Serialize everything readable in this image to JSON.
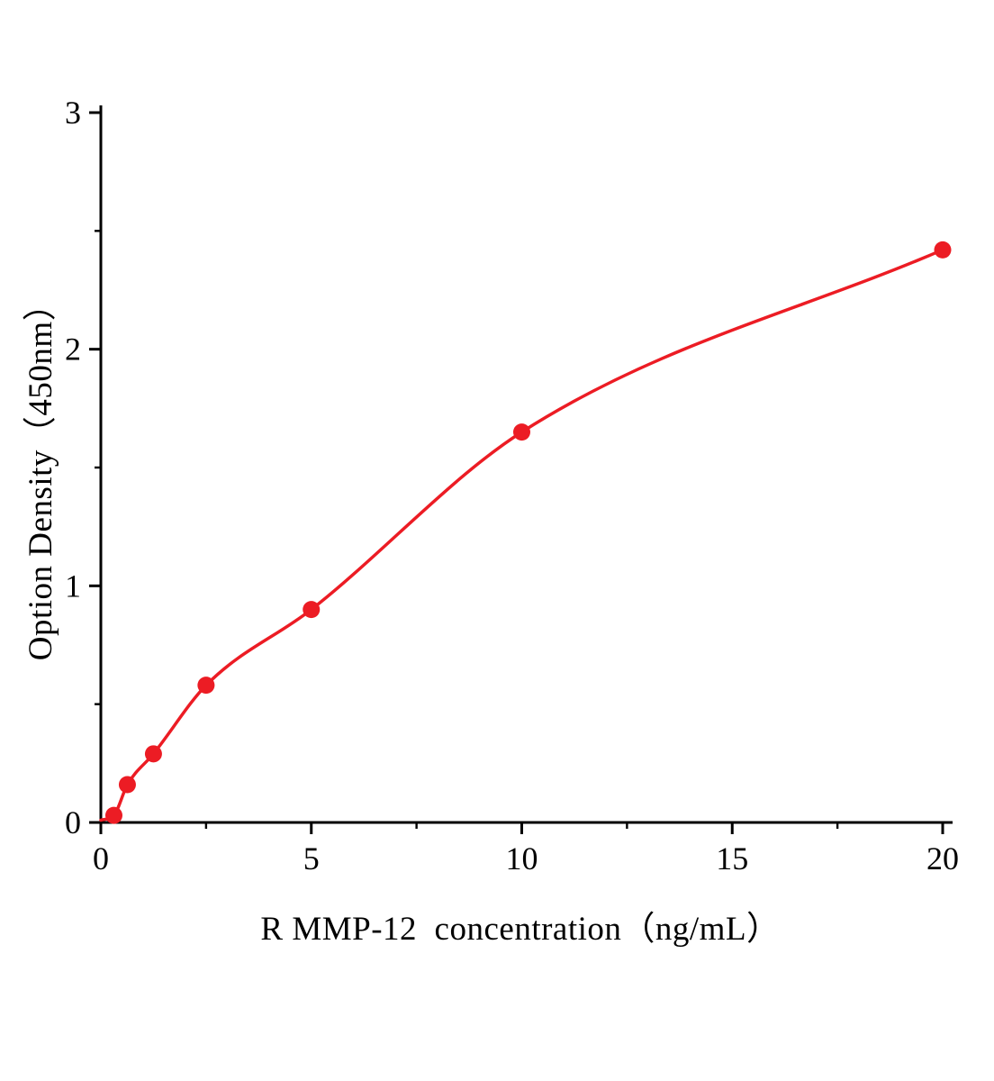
{
  "chart_data": {
    "type": "scatter",
    "title": "",
    "xlabel": "R MMP-12  concentration（ng/mL）",
    "ylabel": "Option Density（450nm）",
    "xlim": [
      0,
      20
    ],
    "ylim": [
      0,
      3
    ],
    "x_major_ticks": [
      0,
      5,
      10,
      15,
      20
    ],
    "y_major_ticks": [
      0,
      1,
      2,
      3
    ],
    "x_minor_step": 2.5,
    "y_minor_step": 0.5,
    "grid": false,
    "legend": "none",
    "points": {
      "x": [
        0.31,
        0.63,
        1.25,
        2.5,
        5,
        10,
        20
      ],
      "y": [
        0.03,
        0.16,
        0.29,
        0.58,
        0.9,
        1.65,
        2.42
      ]
    },
    "fit_curve": {
      "x": [
        0,
        0.31,
        0.63,
        1.25,
        2.5,
        5,
        10,
        20
      ],
      "y": [
        0.01,
        0.03,
        0.16,
        0.29,
        0.58,
        0.9,
        1.65,
        2.42
      ]
    },
    "colors": {
      "points": "#ec1c24",
      "curve": "#ec1c24",
      "axis": "#000000",
      "text": "#000000"
    }
  }
}
